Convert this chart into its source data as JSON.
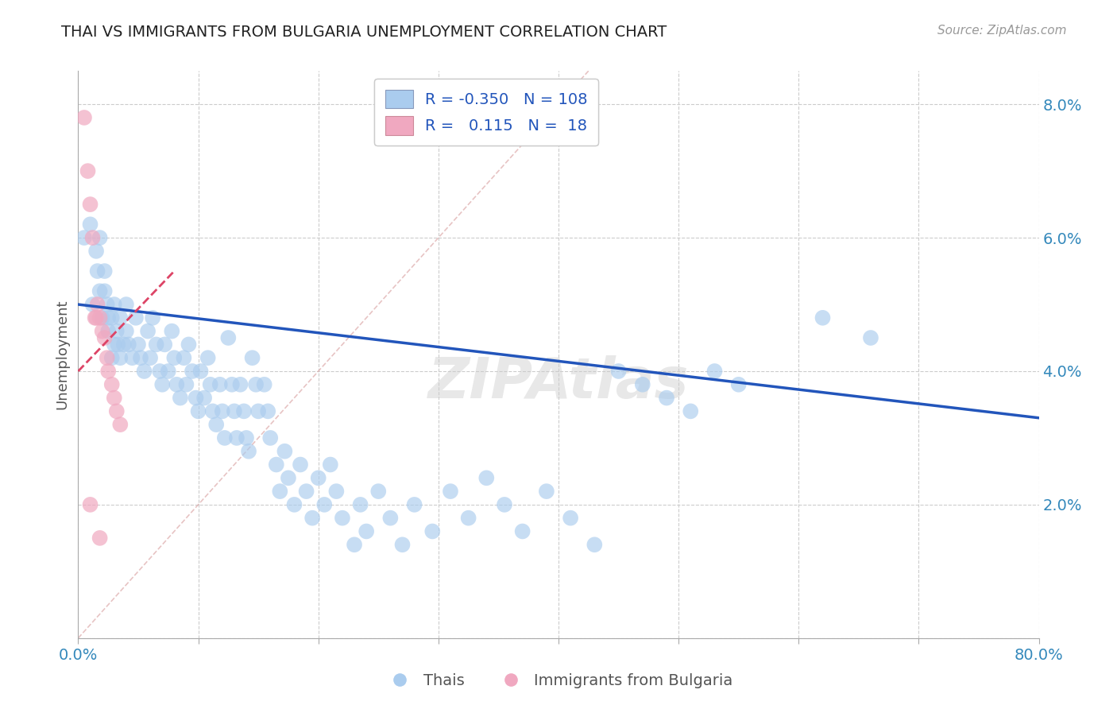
{
  "title": "THAI VS IMMIGRANTS FROM BULGARIA UNEMPLOYMENT CORRELATION CHART",
  "source": "Source: ZipAtlas.com",
  "ylabel": "Unemployment",
  "xlim": [
    0,
    0.8
  ],
  "ylim": [
    0,
    0.085
  ],
  "xticks": [
    0.0,
    0.1,
    0.2,
    0.3,
    0.4,
    0.5,
    0.6,
    0.7,
    0.8
  ],
  "yticks": [
    0.0,
    0.02,
    0.04,
    0.06,
    0.08
  ],
  "blue_color": "#aaccee",
  "pink_color": "#f0a8c0",
  "blue_line_color": "#2255bb",
  "pink_line_color": "#dd4466",
  "grid_color": "#cccccc",
  "blue_scatter_x": [
    0.005,
    0.01,
    0.012,
    0.015,
    0.016,
    0.018,
    0.018,
    0.02,
    0.022,
    0.022,
    0.024,
    0.025,
    0.025,
    0.028,
    0.028,
    0.03,
    0.03,
    0.032,
    0.033,
    0.035,
    0.035,
    0.038,
    0.04,
    0.04,
    0.042,
    0.045,
    0.048,
    0.05,
    0.052,
    0.055,
    0.058,
    0.06,
    0.062,
    0.065,
    0.068,
    0.07,
    0.072,
    0.075,
    0.078,
    0.08,
    0.082,
    0.085,
    0.088,
    0.09,
    0.092,
    0.095,
    0.098,
    0.1,
    0.102,
    0.105,
    0.108,
    0.11,
    0.112,
    0.115,
    0.118,
    0.12,
    0.122,
    0.125,
    0.128,
    0.13,
    0.132,
    0.135,
    0.138,
    0.14,
    0.142,
    0.145,
    0.148,
    0.15,
    0.155,
    0.158,
    0.16,
    0.165,
    0.168,
    0.172,
    0.175,
    0.18,
    0.185,
    0.19,
    0.195,
    0.2,
    0.205,
    0.21,
    0.215,
    0.22,
    0.23,
    0.235,
    0.24,
    0.25,
    0.26,
    0.27,
    0.28,
    0.295,
    0.31,
    0.325,
    0.34,
    0.355,
    0.37,
    0.39,
    0.41,
    0.43,
    0.45,
    0.47,
    0.49,
    0.51,
    0.53,
    0.55,
    0.62,
    0.66
  ],
  "blue_scatter_y": [
    0.06,
    0.062,
    0.05,
    0.058,
    0.055,
    0.052,
    0.06,
    0.048,
    0.055,
    0.052,
    0.05,
    0.048,
    0.046,
    0.042,
    0.048,
    0.044,
    0.05,
    0.046,
    0.044,
    0.042,
    0.048,
    0.044,
    0.05,
    0.046,
    0.044,
    0.042,
    0.048,
    0.044,
    0.042,
    0.04,
    0.046,
    0.042,
    0.048,
    0.044,
    0.04,
    0.038,
    0.044,
    0.04,
    0.046,
    0.042,
    0.038,
    0.036,
    0.042,
    0.038,
    0.044,
    0.04,
    0.036,
    0.034,
    0.04,
    0.036,
    0.042,
    0.038,
    0.034,
    0.032,
    0.038,
    0.034,
    0.03,
    0.045,
    0.038,
    0.034,
    0.03,
    0.038,
    0.034,
    0.03,
    0.028,
    0.042,
    0.038,
    0.034,
    0.038,
    0.034,
    0.03,
    0.026,
    0.022,
    0.028,
    0.024,
    0.02,
    0.026,
    0.022,
    0.018,
    0.024,
    0.02,
    0.026,
    0.022,
    0.018,
    0.014,
    0.02,
    0.016,
    0.022,
    0.018,
    0.014,
    0.02,
    0.016,
    0.022,
    0.018,
    0.024,
    0.02,
    0.016,
    0.022,
    0.018,
    0.014,
    0.04,
    0.038,
    0.036,
    0.034,
    0.04,
    0.038,
    0.048,
    0.045
  ],
  "pink_scatter_x": [
    0.005,
    0.008,
    0.01,
    0.012,
    0.014,
    0.015,
    0.016,
    0.018,
    0.02,
    0.022,
    0.024,
    0.025,
    0.028,
    0.03,
    0.032,
    0.035,
    0.01,
    0.018
  ],
  "pink_scatter_y": [
    0.078,
    0.07,
    0.065,
    0.06,
    0.048,
    0.048,
    0.05,
    0.048,
    0.046,
    0.045,
    0.042,
    0.04,
    0.038,
    0.036,
    0.034,
    0.032,
    0.02,
    0.015
  ],
  "blue_trend_x": [
    0.0,
    0.8
  ],
  "blue_trend_y": [
    0.05,
    0.033
  ],
  "pink_trend_x": [
    0.0,
    0.08
  ],
  "pink_trend_y": [
    0.04,
    0.055
  ],
  "ref_line_x": [
    0.0,
    0.425
  ],
  "ref_line_y": [
    0.0,
    0.085
  ]
}
